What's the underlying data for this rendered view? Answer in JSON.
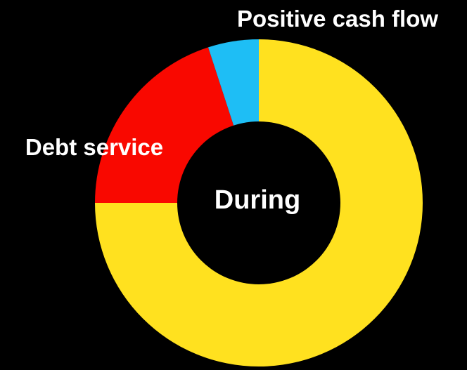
{
  "chart_data": {
    "type": "pie",
    "donut": true,
    "center_label": "During",
    "slices": [
      {
        "label": "",
        "value": 75,
        "color": "#FFE11F"
      },
      {
        "label": "Debt service",
        "value": 20,
        "color": "#F90800"
      },
      {
        "label": "Positive cash flow",
        "value": 5,
        "color": "#1EBEF5"
      }
    ],
    "start": "12 o'clock",
    "direction": "clockwise",
    "background": "#000000",
    "label_color": "#FFFFFF"
  }
}
